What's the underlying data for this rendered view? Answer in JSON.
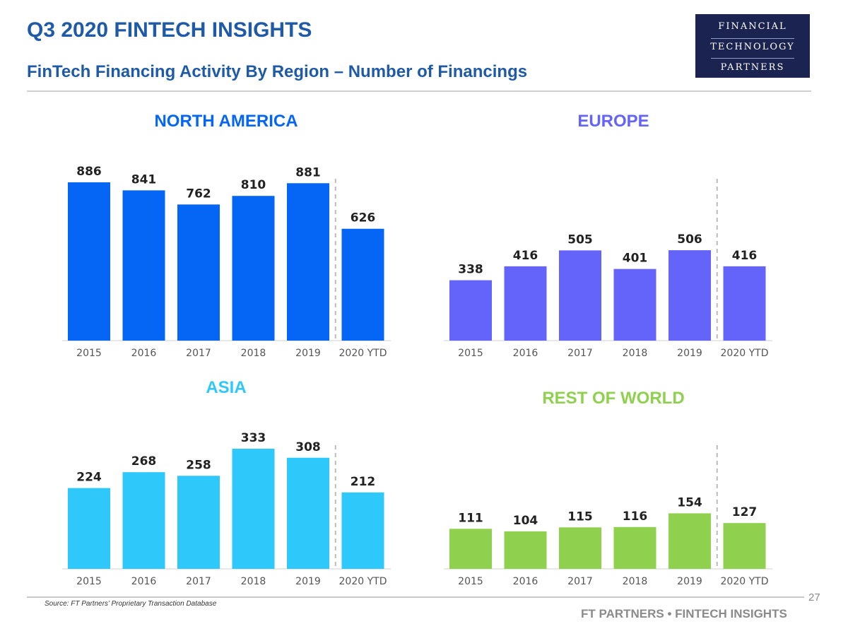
{
  "header": {
    "title": "Q3 2020 FINTECH INSIGHTS",
    "subtitle": "FinTech Financing Activity By Region – Number of Financings"
  },
  "logo": {
    "line1": "FINANCIAL",
    "line2": "TECHNOLOGY",
    "line3": "PARTNERS"
  },
  "footer": {
    "source": "Source: FT Partners’ Proprietary Transaction Database",
    "page_number": "27",
    "brand": "FT PARTNERS • FINTECH INSIGHTS"
  },
  "chart_data": [
    {
      "type": "bar",
      "title": "NORTH AMERICA",
      "color": "#0566f5",
      "categories": [
        "2015",
        "2016",
        "2017",
        "2018",
        "2019",
        "2020 YTD"
      ],
      "values": [
        886,
        841,
        762,
        810,
        881,
        626
      ],
      "ylim": [
        0,
        886
      ]
    },
    {
      "type": "bar",
      "title": "EUROPE",
      "color": "#6464fb",
      "categories": [
        "2015",
        "2016",
        "2017",
        "2018",
        "2019",
        "2020 YTD"
      ],
      "values": [
        338,
        416,
        505,
        401,
        506,
        416
      ],
      "ylim": [
        0,
        886
      ]
    },
    {
      "type": "bar",
      "title": "ASIA",
      "color": "#2ec8fa",
      "categories": [
        "2015",
        "2016",
        "2017",
        "2018",
        "2019",
        "2020 YTD"
      ],
      "values": [
        224,
        268,
        258,
        333,
        308,
        212
      ],
      "ylim": [
        0,
        333
      ]
    },
    {
      "type": "bar",
      "title": "REST OF WORLD",
      "color": "#8fd14f",
      "categories": [
        "2015",
        "2016",
        "2017",
        "2018",
        "2019",
        "2020 YTD"
      ],
      "values": [
        111,
        104,
        115,
        116,
        154,
        127
      ],
      "ylim": [
        0,
        333
      ]
    }
  ]
}
